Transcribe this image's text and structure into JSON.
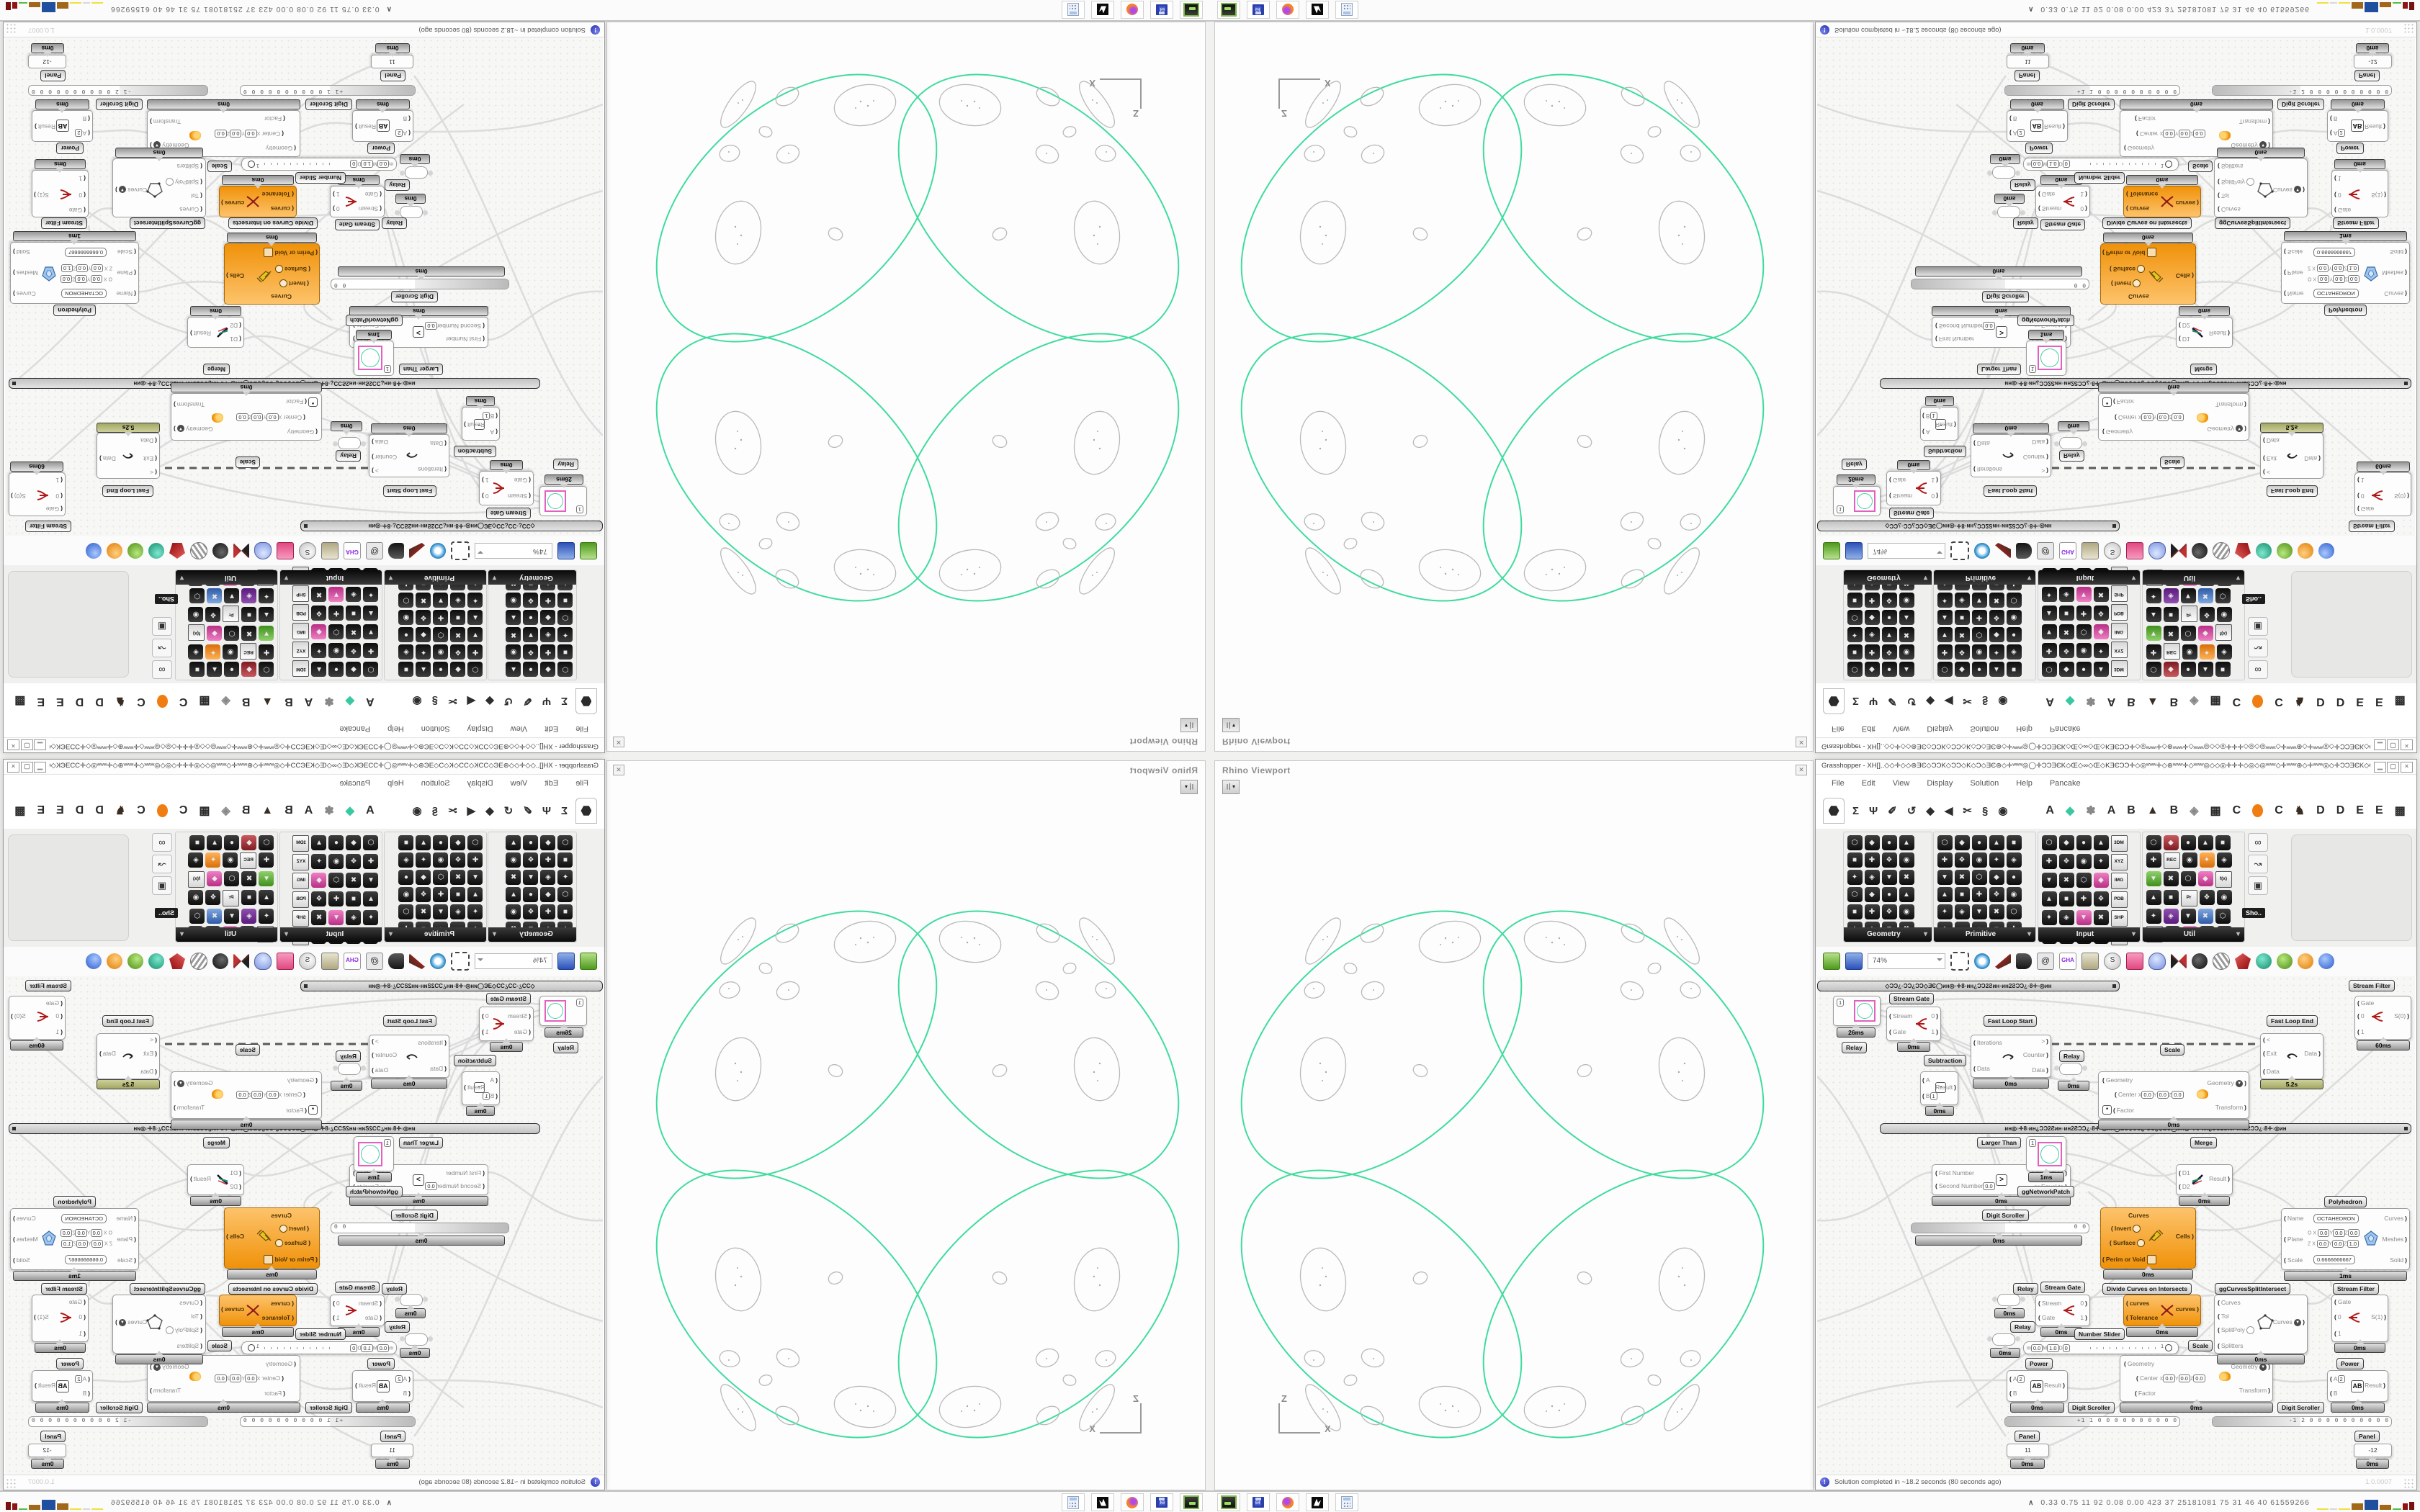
{
  "viewport": {
    "title": "Rhino Viewport",
    "close_glyph": "✕",
    "dropdown_glyph": "▾",
    "axis_x": "X",
    "axis_z": "Z",
    "curve_color": "#3fdc9e"
  },
  "taskbar": {
    "caret": "∧",
    "stats": "0.33 0.75  11  92  0.08 0.00 423  37  25181081  75  31  46  40  61559266"
  },
  "gh": {
    "title": "Grasshopper - XH[]..◇◇✛◇◇⊛ƎЄ◇ƆϽK◇ƆϽ◇K◇Ͻ◇ƎЄ⊛◇✛ʷʷʷ◎◯✛ƆϽƎЄK◇Œ◇∞◇Œ◇KƎЄƆϽ✛◇◎ʷʷʷ✛◇⊛ʷʷʷ✛◇ʷʷʷ◎◇◇◎✛✛✛◇◎◇◎ʷʷʷ◇✛ʷʷʷ⊛◇✛ʷʷʷ◎◇✛ƆϽƎЄK◇Œ◇∞◇Œ_",
    "controls": {
      "min": "▁",
      "max": "▢",
      "close": "×"
    },
    "menu": [
      "File",
      "Edit",
      "View",
      "Display",
      "Solution",
      "Help",
      "Pancake"
    ],
    "tab_icons": [
      "Σ",
      "Ψ",
      "✐",
      "↺",
      "◆",
      "◀",
      "✂",
      "§",
      "◉"
    ],
    "tab_letters": [
      "A",
      "◆",
      "✽",
      "A",
      "B",
      "▲",
      "B",
      "◈",
      "▦",
      "C",
      "",
      "C",
      "♞",
      "D",
      "D",
      "E",
      "E",
      "▩"
    ],
    "zoom": "74%",
    "sho_tooltip": "Sho..",
    "palettes": [
      {
        "name": "Geometry",
        "cols": 4,
        "rows": 6
      },
      {
        "name": "Primitive",
        "cols": 5,
        "rows": 6
      },
      {
        "name": "Input",
        "cols": 5,
        "rows": 6,
        "badges": [
          "3DM",
          "XYZ",
          "IMG",
          "PDB",
          "SHP",
          "ID."
        ]
      },
      {
        "name": "Util",
        "cols": 5,
        "rows": 6,
        "badges": [
          "REC",
          "Pr",
          "f(x)",
          "ABC"
        ],
        "badge_at": [
          6,
          17,
          14,
          25
        ]
      }
    ],
    "group1": "◇ƆϽ¿◦ƆϽ¿ƆϽ◇ƎЄ◯ин◎◦✛8◦ин¿ƆϽ2Ƨин◦ин2ƧƆϽ¿◦8✛◦◎ин",
    "group2": "ин◎◦✛8◦ин¿ƆϽ2Ƨин◦ин2ƧƆϽ¿◦8✛◦◎ин◯ƎЄ◇ƆϽ¿◦ƆϽ¿◇ƎЄ◯ин◎◦✛8◦ин¿ƆϽ2Ƨин◦ин2ƧƆϽ¿◦8✛◦◎ин",
    "status": {
      "text": "Solution completed in ~18.2 seconds (80 seconds ago)",
      "version": "1.0.0007"
    },
    "nodes": {
      "relay": "Relay",
      "ms0": "0ms",
      "mini1": {
        "v": "1",
        "t": "26ms"
      },
      "sgate": {
        "label": "Stream Gate",
        "i1": "Stream",
        "i2": "Gate",
        "o1": "0",
        "o2": "1"
      },
      "fls": {
        "label": "Fast Loop Start",
        "i1": "Iterations",
        "i2": "Data",
        "og": ">",
        "o1": "Counter",
        "o2": "Data"
      },
      "fle": {
        "label": "Fast Loop End",
        "ig": "<",
        "i1": "Exit",
        "i2": "Data",
        "o1": "Data",
        "t": "5.2s"
      },
      "sfilter": {
        "label": "Stream Filter",
        "i1": "Gate",
        "o0": "0",
        "s0": "S(0)",
        "s1": "S(1)",
        "o1": "1",
        "t60": "60ms"
      },
      "sub": {
        "label": "Subtraction",
        "a": "A",
        "b": "B",
        "bv": "1",
        "op": "-",
        "o": "Result"
      },
      "scale": {
        "label": "Scale",
        "gi": "Geometry",
        "center": "Center",
        "x": "X",
        "y": "Y",
        "z": "Z",
        "v0": "0.0",
        "v1": "0.0",
        "v2": "0.0",
        "factor": "Factor",
        "star": "*",
        "go": "Geometry",
        "to": "Transform"
      },
      "lt": {
        "label": "Larger Than",
        "i1": "First Number",
        "i2": "Second Number",
        "v": "0.0",
        "op": ">",
        "o1": "Larger than",
        "o2": "... or Equal to"
      },
      "dstag": "Digit Scroller",
      "scrollers": {
        "top": "0  0",
        "left": "+1 1 0 0 0 0 0 0 0 0 0 0",
        "right": "-1 2 0 0 0 0 0 0 0 0 0 0"
      },
      "merge": {
        "label": "Merge",
        "d1": "D1",
        "d2": "D2",
        "o": "Result"
      },
      "ggnp": {
        "label": "ggNetworkPatch",
        "v": "1",
        "t": "1ms"
      },
      "cells": {
        "label": "Divide Curves on Intersects",
        "i1": "Curves",
        "i2": "Invert",
        "i3": "Surface",
        "i4": "Perim or Void",
        "o": "Cells"
      },
      "poly": {
        "label": "Polyhedron",
        "name": "Name",
        "namev": "OCTAHEDRON",
        "plane": "Plane",
        "ox": "O X",
        "zx": "Z X",
        "y": "Y",
        "z": "Z",
        "v00": "0.0",
        "v01": "0.0",
        "v02": "0.0",
        "v10": "0.0",
        "v11": "0.0",
        "v12": "1.0",
        "scalel": "Scale",
        "scalev": "0.6666666667",
        "o1": "Curves",
        "o2": "Meshes",
        "o3": "Solid",
        "t": "1ms"
      },
      "gcsi": {
        "label": "ggCurvesSplitIntersect",
        "i1": "Curves",
        "i2": "Tol",
        "i3": "SplitPoly",
        "i4": "Splitters",
        "o": "Curves"
      },
      "ocurves": {
        "i1": "curves",
        "i2": "Tolerance",
        "o": "curves"
      },
      "slider": {
        "label": "Number Slider",
        "m": "m",
        "mv": "0.0",
        "M": "M",
        "Mv": "1.0",
        "d": "D",
        "dv": "0",
        "end": "1"
      },
      "scaletag": "Scale",
      "power": {
        "label": "Power",
        "a": "A",
        "av": "2",
        "ab": "AB",
        "b": "B",
        "o": "Result"
      },
      "panel": {
        "label": "Panel",
        "v1": "11",
        "v2": "-12"
      }
    }
  }
}
